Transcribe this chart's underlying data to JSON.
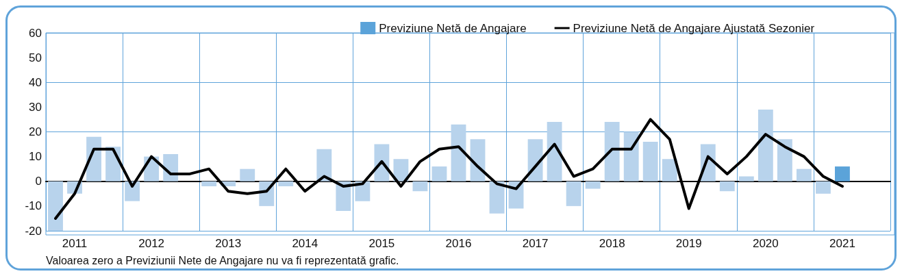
{
  "chart_data": {
    "type": "bar",
    "categories": [
      null,
      "2011",
      null,
      null,
      null,
      "2012",
      null,
      null,
      null,
      "2013",
      null,
      null,
      null,
      "2014",
      null,
      null,
      null,
      "2015",
      null,
      null,
      null,
      "2016",
      null,
      null,
      null,
      "2017",
      null,
      null,
      null,
      "2018",
      null,
      null,
      null,
      "2019",
      null,
      null,
      null,
      "2020",
      null,
      null,
      null,
      "2021",
      null,
      null
    ],
    "series": [
      {
        "name": "Previziune Netă de Angajare",
        "color": "#5ba3d9",
        "colors": [
          "#b8d3ec",
          "#b8d3ec",
          "#b8d3ec",
          "#b8d3ec",
          "#b8d3ec",
          "#b8d3ec",
          "#b8d3ec",
          "#b8d3ec",
          "#b8d3ec",
          "#b8d3ec",
          "#b8d3ec",
          "#b8d3ec",
          "#b8d3ec",
          "#b8d3ec",
          "#b8d3ec",
          "#b8d3ec",
          "#b8d3ec",
          "#b8d3ec",
          "#b8d3ec",
          "#b8d3ec",
          "#b8d3ec",
          "#b8d3ec",
          "#b8d3ec",
          "#b8d3ec",
          "#b8d3ec",
          "#b8d3ec",
          "#b8d3ec",
          "#b8d3ec",
          "#b8d3ec",
          "#b8d3ec",
          "#b8d3ec",
          "#b8d3ec",
          "#b8d3ec",
          "#b8d3ec",
          "#b8d3ec",
          "#b8d3ec",
          "#b8d3ec",
          "#b8d3ec",
          "#b8d3ec",
          "#b8d3ec",
          "#b8d3ec",
          "#5ba3d9",
          "#b8d3ec",
          "#b8d3ec"
        ],
        "values": [
          -20,
          -5,
          18,
          14,
          -8,
          10,
          11,
          0,
          -2,
          -2,
          5,
          -10,
          -2,
          0,
          13,
          -12,
          -8,
          15,
          9,
          -4,
          6,
          23,
          17,
          -13,
          -11,
          17,
          24,
          -10,
          -3,
          24,
          20,
          16,
          9,
          0,
          15,
          -4,
          2,
          29,
          17,
          5,
          -5,
          6,
          null,
          null
        ]
      },
      {
        "name": "Previziune Netă de Angajare Ajustată Sezonier",
        "type": "line",
        "color": "#000000",
        "values": [
          -15,
          -5,
          13,
          13,
          -2,
          10,
          3,
          3,
          5,
          -4,
          -5,
          -4,
          5,
          -4,
          2,
          -2,
          -1,
          8,
          -2,
          8,
          13,
          14,
          6,
          -1,
          -3,
          6,
          15,
          2,
          5,
          13,
          13,
          25,
          17,
          -11,
          10,
          3,
          10,
          19,
          14,
          10,
          2,
          -2,
          null,
          null
        ]
      }
    ],
    "ylim": [
      -20,
      60
    ],
    "yticks": [
      -20,
      -10,
      0,
      10,
      20,
      30,
      40,
      50,
      60
    ],
    "grid": true,
    "legend": "top right",
    "marker": "none",
    "line_style": "solid",
    "annotations": [
      "Valoarea zero a Previziunii Nete de Angajare nu va fi reprezentată grafic."
    ]
  }
}
